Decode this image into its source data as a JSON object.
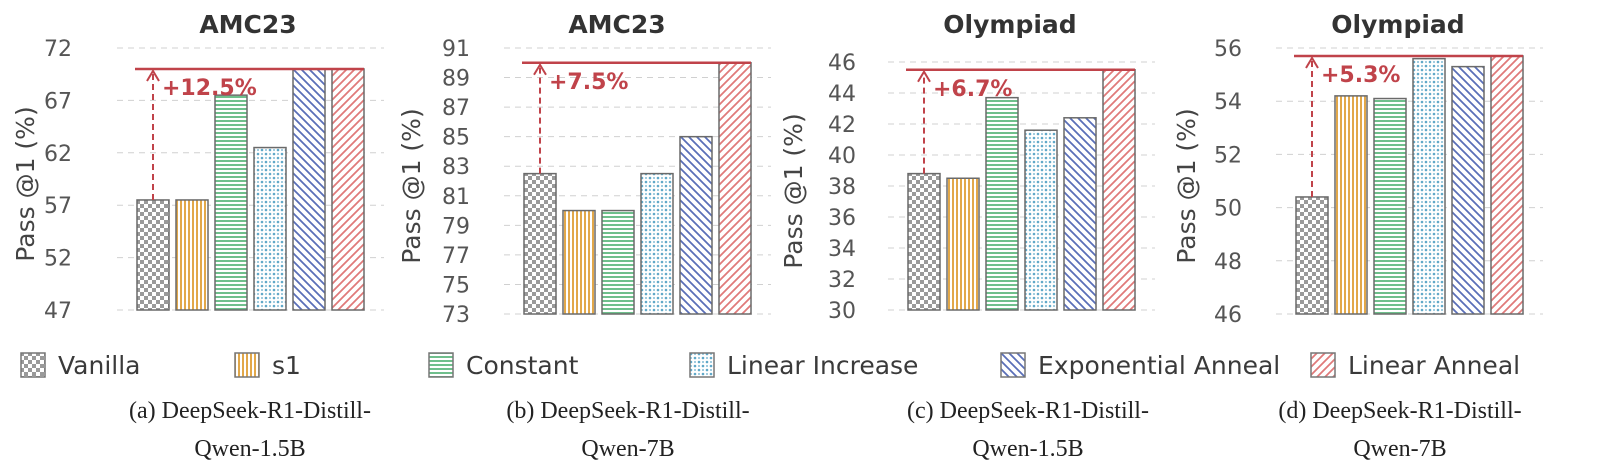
{
  "ylabel": "Pass @1 (%)",
  "legend": [
    {
      "name": "Vanilla",
      "pattern": "checker",
      "color": "#9a9a9a"
    },
    {
      "name": "s1",
      "pattern": "vlines",
      "color": "#e2a84a"
    },
    {
      "name": "Constant",
      "pattern": "hlines",
      "color": "#6fbf8c"
    },
    {
      "name": "Linear Increase",
      "pattern": "dots",
      "color": "#5fa8c8"
    },
    {
      "name": "Exponential Anneal",
      "pattern": "ldiag",
      "color": "#5a6fb8"
    },
    {
      "name": "Linear Anneal",
      "pattern": "rdiag",
      "color": "#e07a7a"
    }
  ],
  "colors": {
    "annotation": "#c0434a",
    "grid": "#d0d0d0",
    "axis_text": "#555555"
  },
  "chart_data": [
    {
      "type": "bar",
      "title": "AMC23",
      "caption_line1": "(a) DeepSeek-R1-Distill-",
      "caption_line2": "Qwen-1.5B",
      "categories": [
        "Vanilla",
        "s1",
        "Constant",
        "Linear Increase",
        "Exponential Anneal",
        "Linear Anneal"
      ],
      "values": [
        57.5,
        57.5,
        67.5,
        62.5,
        70.0,
        70.0
      ],
      "ylim": [
        47,
        72
      ],
      "yticks": [
        47,
        52,
        57,
        62,
        67,
        72
      ],
      "annotation": "+12.5%",
      "grid": true
    },
    {
      "type": "bar",
      "title": "AMC23",
      "caption_line1": "(b) DeepSeek-R1-Distill-",
      "caption_line2": "Qwen-7B",
      "categories": [
        "Vanilla",
        "s1",
        "Constant",
        "Linear Increase",
        "Exponential Anneal",
        "Linear Anneal"
      ],
      "values": [
        82.5,
        80.0,
        80.0,
        82.5,
        85.0,
        90.0
      ],
      "ylim": [
        73,
        91
      ],
      "yticks": [
        73,
        75,
        77,
        79,
        81,
        83,
        85,
        87,
        89,
        91
      ],
      "annotation": "+7.5%",
      "grid": true
    },
    {
      "type": "bar",
      "title": "Olympiad",
      "caption_line1": "(c) DeepSeek-R1-Distill-",
      "caption_line2": "Qwen-1.5B",
      "categories": [
        "Vanilla",
        "s1",
        "Constant",
        "Linear Increase",
        "Exponential Anneal",
        "Linear Anneal"
      ],
      "values": [
        38.8,
        38.5,
        43.7,
        41.6,
        42.4,
        45.5
      ],
      "ylim": [
        30,
        46
      ],
      "yticks": [
        30,
        32,
        34,
        36,
        38,
        40,
        42,
        44,
        46
      ],
      "annotation": "+6.7%",
      "grid": true
    },
    {
      "type": "bar",
      "title": "Olympiad",
      "caption_line1": "(d) DeepSeek-R1-Distill-",
      "caption_line2": "Qwen-7B",
      "categories": [
        "Vanilla",
        "s1",
        "Constant",
        "Linear Increase",
        "Exponential Anneal",
        "Linear Anneal"
      ],
      "values": [
        50.4,
        54.2,
        54.1,
        55.6,
        55.3,
        55.7
      ],
      "ylim": [
        46,
        56
      ],
      "yticks": [
        46,
        48,
        50,
        52,
        54,
        56
      ],
      "annotation": "+5.3%",
      "grid": true
    }
  ]
}
